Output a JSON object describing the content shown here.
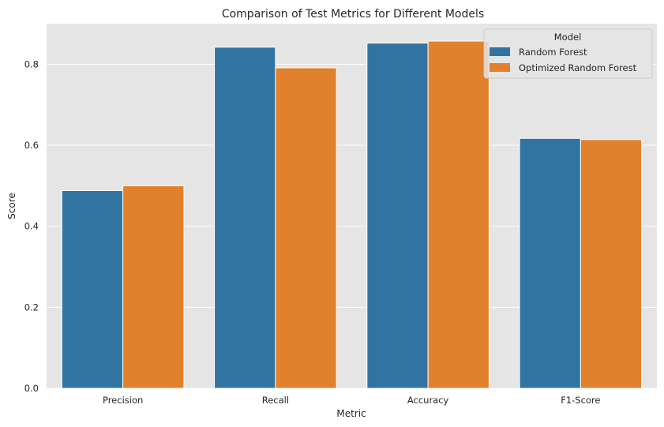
{
  "chart_data": {
    "type": "bar",
    "title": "Comparison of Test Metrics for Different Models",
    "xlabel": "Metric",
    "ylabel": "Score",
    "categories": [
      "Precision",
      "Recall",
      "Accuracy",
      "F1-Score"
    ],
    "series": [
      {
        "name": "Random Forest",
        "color": "#3274a1",
        "values": [
          0.488,
          0.842,
          0.852,
          0.617
        ]
      },
      {
        "name": "Optimized Random Forest",
        "color": "#e1812c",
        "values": [
          0.5,
          0.791,
          0.857,
          0.614
        ]
      }
    ],
    "ylim": [
      0,
      0.9
    ],
    "yticks": [
      "0.0",
      "0.2",
      "0.4",
      "0.6",
      "0.8"
    ],
    "ytick_values": [
      0,
      0.2,
      0.4,
      0.6,
      0.8
    ],
    "grid": true,
    "legend": {
      "title": "Model",
      "position": "top-right"
    },
    "background": "#e5e5e5"
  }
}
